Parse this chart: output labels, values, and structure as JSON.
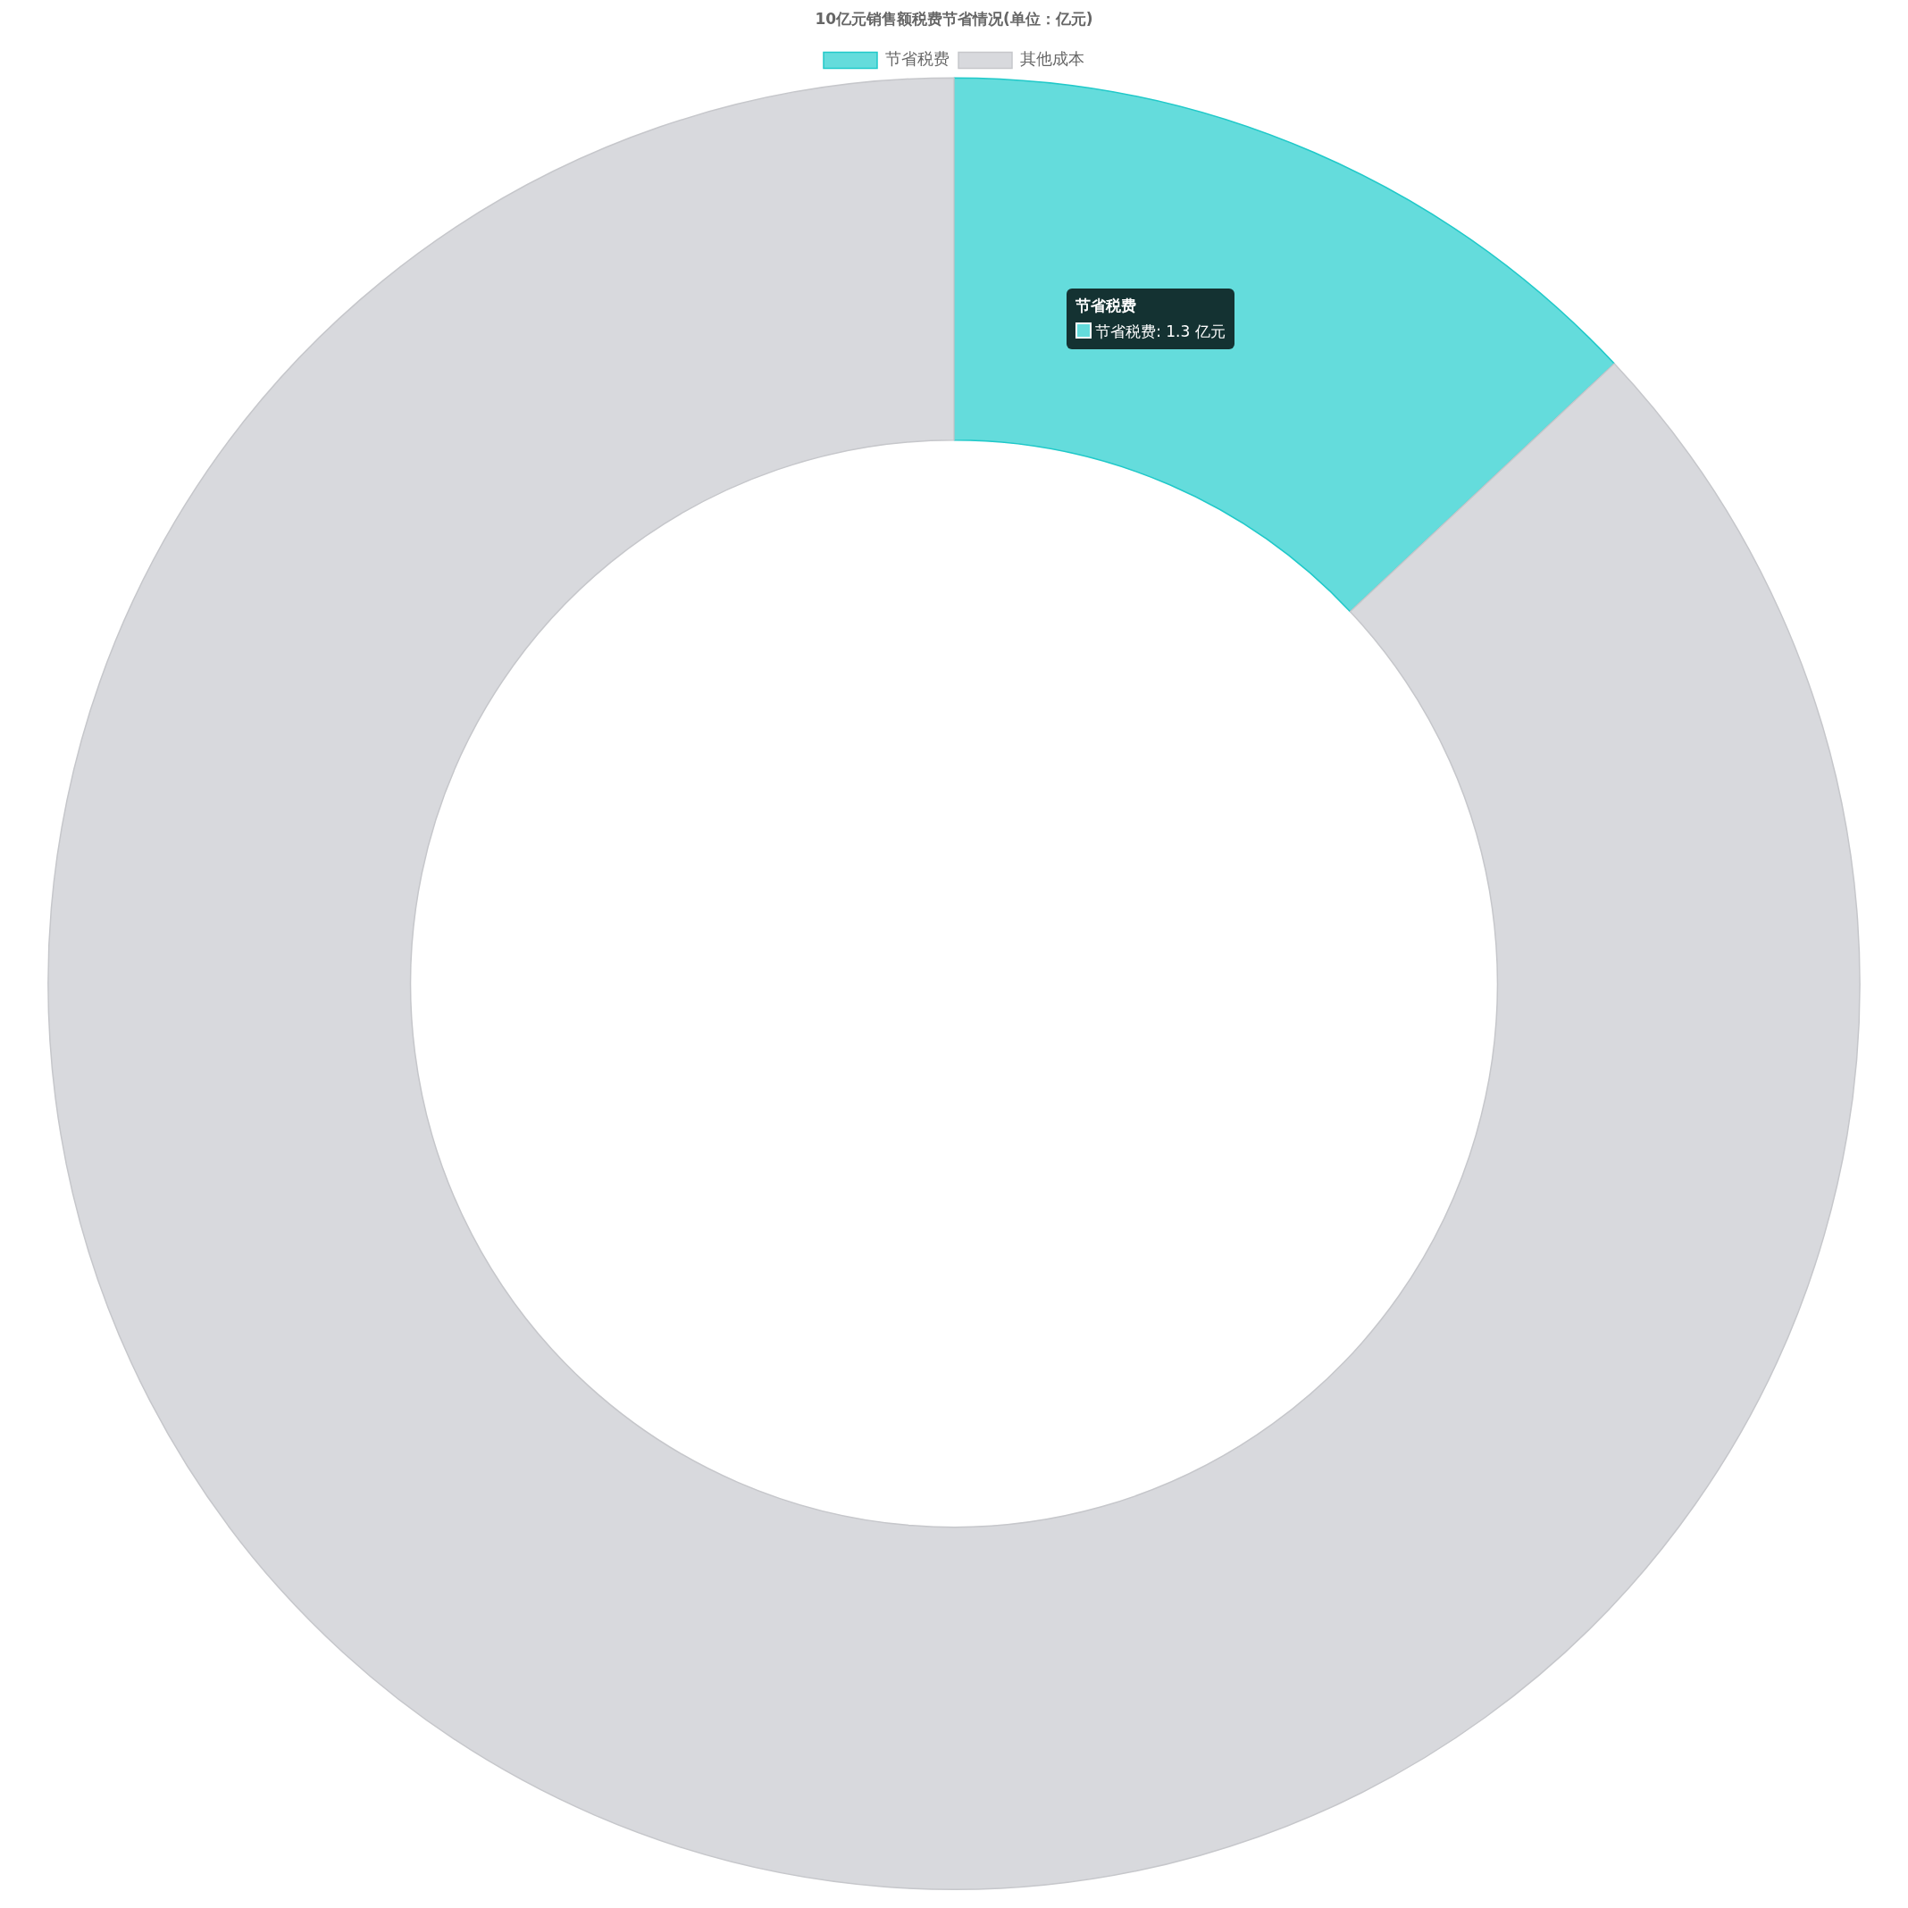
{
  "chart_data": {
    "type": "donut",
    "title": "10亿元销售额税费节省情况(单位：亿元)",
    "categories": [
      "节省税费",
      "其他成本"
    ],
    "values": [
      1.3,
      8.7
    ],
    "colors": [
      "#64dcdc",
      "#d8d9dd"
    ],
    "value_labels": [
      "节省税费: 1.3 亿元",
      null
    ],
    "legend": "top"
  }
}
